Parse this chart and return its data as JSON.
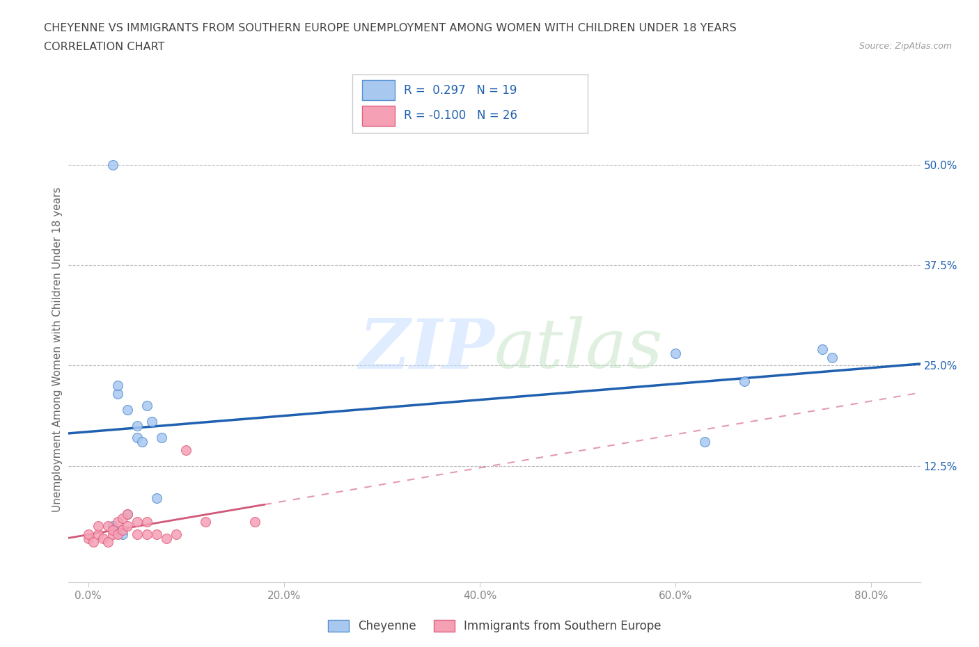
{
  "title_line1": "CHEYENNE VS IMMIGRANTS FROM SOUTHERN EUROPE UNEMPLOYMENT AMONG WOMEN WITH CHILDREN UNDER 18 YEARS",
  "title_line2": "CORRELATION CHART",
  "source": "Source: ZipAtlas.com",
  "ylabel": "Unemployment Among Women with Children Under 18 years",
  "xlabel_ticks": [
    "0.0%",
    "20.0%",
    "40.0%",
    "60.0%",
    "80.0%"
  ],
  "xlabel_vals": [
    0.0,
    0.2,
    0.4,
    0.6,
    0.8
  ],
  "ylabel_ticks": [
    "12.5%",
    "25.0%",
    "37.5%",
    "50.0%"
  ],
  "ylabel_vals": [
    0.125,
    0.25,
    0.375,
    0.5
  ],
  "xlim": [
    -0.02,
    0.85
  ],
  "ylim": [
    -0.02,
    0.56
  ],
  "cheyenne_x": [
    0.025,
    0.03,
    0.03,
    0.04,
    0.05,
    0.05,
    0.055,
    0.06,
    0.065,
    0.07,
    0.075,
    0.6,
    0.63,
    0.67,
    0.75,
    0.76,
    0.025,
    0.035,
    0.04
  ],
  "cheyenne_y": [
    0.5,
    0.215,
    0.225,
    0.195,
    0.175,
    0.16,
    0.155,
    0.2,
    0.18,
    0.085,
    0.16,
    0.265,
    0.155,
    0.23,
    0.27,
    0.26,
    0.05,
    0.04,
    0.065
  ],
  "immigrants_x": [
    0.0,
    0.0,
    0.005,
    0.01,
    0.01,
    0.015,
    0.02,
    0.02,
    0.025,
    0.025,
    0.03,
    0.03,
    0.035,
    0.035,
    0.04,
    0.04,
    0.05,
    0.05,
    0.06,
    0.06,
    0.07,
    0.08,
    0.09,
    0.1,
    0.12,
    0.17
  ],
  "immigrants_y": [
    0.035,
    0.04,
    0.03,
    0.04,
    0.05,
    0.035,
    0.03,
    0.05,
    0.04,
    0.045,
    0.04,
    0.055,
    0.045,
    0.06,
    0.05,
    0.065,
    0.04,
    0.055,
    0.04,
    0.055,
    0.04,
    0.035,
    0.04,
    0.145,
    0.055,
    0.055
  ],
  "cheyenne_color": "#A8C8F0",
  "immigrants_color": "#F5A0B5",
  "cheyenne_edge_color": "#5590D0",
  "immigrants_edge_color": "#E06080",
  "cheyenne_line_color": "#2060B0",
  "immigrants_line_color": "#D05878",
  "background_color": "#FFFFFF",
  "grid_color": "#BBBBBB",
  "R_cheyenne": 0.297,
  "N_cheyenne": 19,
  "R_immigrants": -0.1,
  "N_immigrants": 26,
  "legend_cheyenne": "Cheyenne",
  "legend_immigrants": "Immigrants from Southern Europe",
  "watermark_zip": "ZIP",
  "watermark_atlas": "atlas",
  "stat_color": "#2060B0",
  "title_color": "#444444",
  "tick_color": "#888888"
}
